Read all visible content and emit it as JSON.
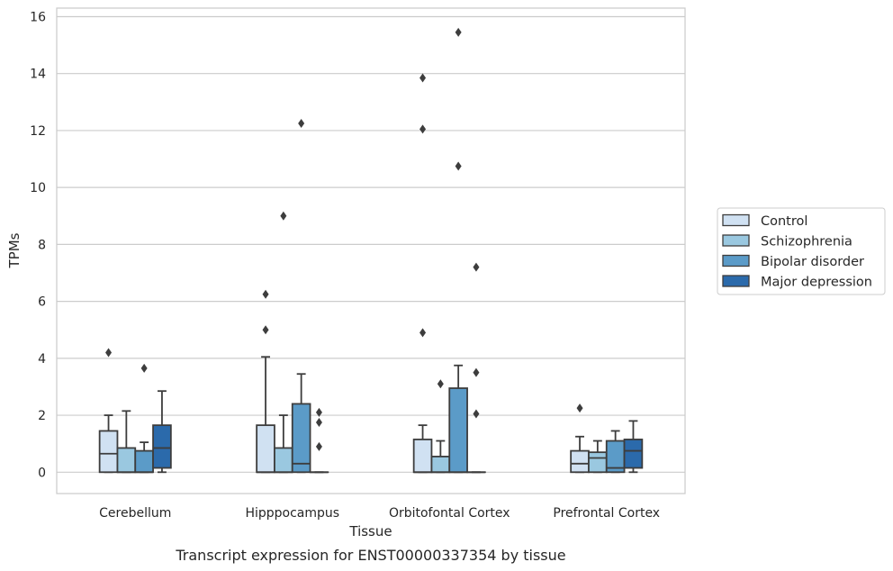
{
  "chart_data": {
    "type": "boxplot",
    "caption": "Transcript expression for ENST00000337354 by tissue",
    "xlabel": "Tissue",
    "ylabel": "TPMs",
    "ylim": [
      -0.75,
      16.3
    ],
    "yticks": [
      0,
      2,
      4,
      6,
      8,
      10,
      12,
      14,
      16
    ],
    "grid": "horizontal",
    "legend_position": "right",
    "categories": [
      "Cerebellum",
      "Hipppocampus",
      "Orbitofontal Cortex",
      "Prefrontal Cortex"
    ],
    "series": [
      {
        "name": "Control",
        "color": "#d0e1f2",
        "boxes": [
          {
            "whisker_low": 0,
            "q1": 0,
            "median": 0.65,
            "q3": 1.45,
            "whisker_high": 2.0,
            "outliers": [
              4.2
            ]
          },
          {
            "whisker_low": 0,
            "q1": 0,
            "median": 0,
            "q3": 1.65,
            "whisker_high": 4.05,
            "outliers": [
              5.0,
              6.25
            ]
          },
          {
            "whisker_low": 0,
            "q1": 0,
            "median": 0,
            "q3": 1.15,
            "whisker_high": 1.65,
            "outliers": [
              4.9,
              12.05,
              13.85
            ]
          },
          {
            "whisker_low": 0,
            "q1": 0,
            "median": 0.3,
            "q3": 0.75,
            "whisker_high": 1.25,
            "outliers": [
              2.25
            ]
          }
        ]
      },
      {
        "name": "Schizophrenia",
        "color": "#9ac8e0",
        "boxes": [
          {
            "whisker_low": 0,
            "q1": 0,
            "median": 0,
            "q3": 0.85,
            "whisker_high": 2.15,
            "outliers": []
          },
          {
            "whisker_low": 0,
            "q1": 0,
            "median": 0,
            "q3": 0.85,
            "whisker_high": 2.0,
            "outliers": [
              9.0
            ]
          },
          {
            "whisker_low": 0,
            "q1": 0,
            "median": 0,
            "q3": 0.55,
            "whisker_high": 1.1,
            "outliers": [
              3.1
            ]
          },
          {
            "whisker_low": 0,
            "q1": 0,
            "median": 0.5,
            "q3": 0.7,
            "whisker_high": 1.1,
            "outliers": []
          }
        ]
      },
      {
        "name": "Bipolar disorder",
        "color": "#5b9bc8",
        "boxes": [
          {
            "whisker_low": 0,
            "q1": 0,
            "median": 0,
            "q3": 0.75,
            "whisker_high": 1.05,
            "outliers": [
              3.65
            ]
          },
          {
            "whisker_low": 0,
            "q1": 0,
            "median": 0.3,
            "q3": 2.4,
            "whisker_high": 3.45,
            "outliers": [
              12.25
            ]
          },
          {
            "whisker_low": 0,
            "q1": 0,
            "median": 0,
            "q3": 2.95,
            "whisker_high": 3.75,
            "outliers": [
              10.75,
              15.45
            ]
          },
          {
            "whisker_low": 0,
            "q1": 0,
            "median": 0.15,
            "q3": 1.1,
            "whisker_high": 1.45,
            "outliers": []
          }
        ]
      },
      {
        "name": "Major depression",
        "color": "#2b6aab",
        "boxes": [
          {
            "whisker_low": 0,
            "q1": 0.15,
            "median": 0.85,
            "q3": 1.65,
            "whisker_high": 2.85,
            "outliers": []
          },
          {
            "whisker_low": 0,
            "q1": 0,
            "median": 0,
            "q3": 0,
            "whisker_high": 0,
            "outliers": [
              0.9,
              1.75,
              2.1
            ]
          },
          {
            "whisker_low": 0,
            "q1": 0,
            "median": 0,
            "q3": 0,
            "whisker_high": 0,
            "outliers": [
              2.05,
              3.5,
              7.2
            ]
          },
          {
            "whisker_low": 0,
            "q1": 0.15,
            "median": 0.75,
            "q3": 1.15,
            "whisker_high": 1.8,
            "outliers": []
          }
        ]
      }
    ]
  }
}
